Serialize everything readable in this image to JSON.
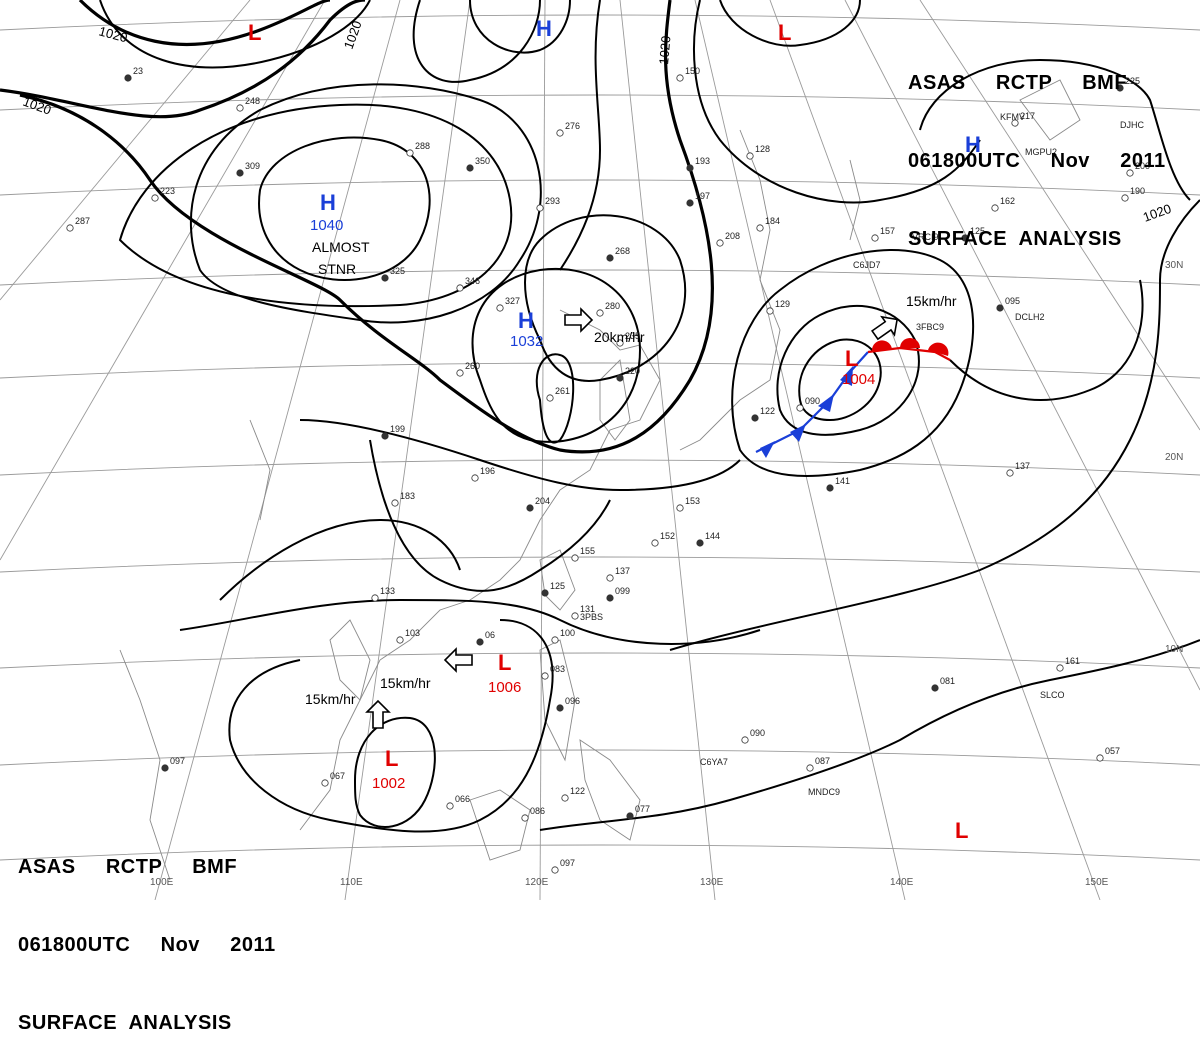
{
  "header": {
    "line1": "ASAS     RCTP     BMF",
    "line2": "061800UTC     Nov     2011",
    "line3": "SURFACE  ANALYSIS"
  },
  "colors": {
    "high": "#1a3fd8",
    "low": "#e00000",
    "cold_front": "#1a3fd8",
    "warm_front": "#e00000"
  },
  "isobar_labels": [
    "1020",
    "1020",
    "1020",
    "1020",
    "1020"
  ],
  "lat_labels": [
    "30N",
    "20N",
    "10N"
  ],
  "lon_labels": [
    "100E",
    "110E",
    "120E",
    "130E",
    "140E",
    "150E"
  ],
  "centers": [
    {
      "type": "H",
      "value": "1040"
    },
    {
      "type": "H",
      "value": "1032"
    },
    {
      "type": "H",
      "value": ""
    },
    {
      "type": "H",
      "value": ""
    },
    {
      "type": "L",
      "value": "1004"
    },
    {
      "type": "L",
      "value": "1006"
    },
    {
      "type": "L",
      "value": "1002"
    },
    {
      "type": "L",
      "value": ""
    },
    {
      "type": "L",
      "value": ""
    },
    {
      "type": "L",
      "value": ""
    }
  ],
  "annotations": {
    "almost": "ALMOST",
    "stnr": "STNR"
  },
  "motions": [
    "20km/hr",
    "15km/hr",
    "15km/hr",
    "15km/hr"
  ],
  "ship_ids": [
    "C6JD7",
    "VRCI9",
    "3FBC9",
    "DCLH2",
    "KFMV",
    "MGPU2",
    "DJHC",
    "C6YA7",
    "MNDC9",
    "SLCO",
    "3PBS"
  ],
  "observations": [
    "23",
    "287",
    "223",
    "309",
    "248",
    "288",
    "350",
    "276",
    "293",
    "197",
    "208",
    "184",
    "268",
    "346",
    "327",
    "325",
    "280",
    "235",
    "220",
    "261",
    "260",
    "199",
    "196",
    "183",
    "204",
    "155",
    "137",
    "099",
    "153",
    "152",
    "144",
    "133",
    "103",
    "125",
    "131",
    "083",
    "096",
    "122",
    "086",
    "077",
    "066",
    "067",
    "097",
    "090",
    "087",
    "081",
    "161",
    "057",
    "141",
    "137",
    "157",
    "125",
    "162",
    "217",
    "225",
    "200",
    "190",
    "193",
    "150",
    "129",
    "122",
    "090",
    "128",
    "095",
    "097",
    "100",
    "06"
  ]
}
